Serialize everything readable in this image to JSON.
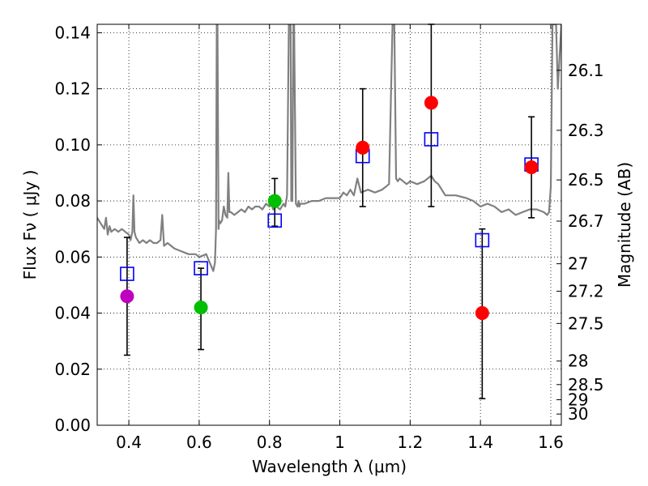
{
  "chart_data": {
    "type": "scatter",
    "xlabel": "Wavelength  λ (μm)",
    "ylabel_left": "Flux  Fν  ( μJy )",
    "ylabel_right": "Magnitude (AB)",
    "xlim": [
      0.31,
      1.63
    ],
    "ylim": [
      0.0,
      0.143
    ],
    "grid": true,
    "x_ticks": [
      {
        "value": 0.4,
        "label": "0.4"
      },
      {
        "value": 0.6,
        "label": "0.6"
      },
      {
        "value": 0.8,
        "label": "0.8"
      },
      {
        "value": 1.0,
        "label": "1"
      },
      {
        "value": 1.2,
        "label": "1.2"
      },
      {
        "value": 1.4,
        "label": "1.4"
      },
      {
        "value": 1.6,
        "label": "1.6"
      }
    ],
    "y_ticks": [
      {
        "value": 0.0,
        "label": "0.00"
      },
      {
        "value": 0.02,
        "label": "0.02"
      },
      {
        "value": 0.04,
        "label": "0.04"
      },
      {
        "value": 0.06,
        "label": "0.06"
      },
      {
        "value": 0.08,
        "label": "0.08"
      },
      {
        "value": 0.1,
        "label": "0.10"
      },
      {
        "value": 0.12,
        "label": "0.12"
      },
      {
        "value": 0.14,
        "label": "0.14"
      }
    ],
    "right_ticks": [
      {
        "flux": 0.1266,
        "label": "26.1"
      },
      {
        "flux": 0.1052,
        "label": "26.3"
      },
      {
        "flux": 0.0875,
        "label": "26.5"
      },
      {
        "flux": 0.0728,
        "label": "26.7"
      },
      {
        "flux": 0.0576,
        "label": "27"
      },
      {
        "flux": 0.0478,
        "label": "27.2"
      },
      {
        "flux": 0.0363,
        "label": "27.5"
      },
      {
        "flux": 0.0229,
        "label": "28"
      },
      {
        "flux": 0.0145,
        "label": "28.5"
      },
      {
        "flux": 0.0091,
        "label": "29"
      },
      {
        "flux": 0.004,
        "label": "30"
      }
    ],
    "spectrum": {
      "color": "#808080",
      "x": [
        0.31,
        0.32,
        0.33,
        0.335,
        0.34,
        0.345,
        0.35,
        0.36,
        0.37,
        0.38,
        0.39,
        0.4,
        0.405,
        0.41,
        0.413,
        0.416,
        0.42,
        0.43,
        0.44,
        0.45,
        0.46,
        0.47,
        0.48,
        0.49,
        0.495,
        0.5,
        0.51,
        0.52,
        0.53,
        0.55,
        0.57,
        0.59,
        0.6,
        0.62,
        0.63,
        0.64,
        0.645,
        0.648,
        0.65,
        0.652,
        0.655,
        0.657,
        0.66,
        0.665,
        0.67,
        0.675,
        0.68,
        0.683,
        0.686,
        0.69,
        0.7,
        0.72,
        0.73,
        0.74,
        0.75,
        0.76,
        0.77,
        0.78,
        0.79,
        0.8,
        0.805,
        0.81,
        0.82,
        0.83,
        0.84,
        0.845,
        0.85,
        0.855,
        0.86,
        0.862,
        0.865,
        0.868,
        0.87,
        0.875,
        0.88,
        0.883,
        0.885,
        0.888,
        0.89,
        0.9,
        0.92,
        0.94,
        0.96,
        0.98,
        1.0,
        1.01,
        1.02,
        1.03,
        1.04,
        1.05,
        1.06,
        1.08,
        1.1,
        1.12,
        1.13,
        1.14,
        1.15,
        1.155,
        1.16,
        1.165,
        1.17,
        1.18,
        1.19,
        1.2,
        1.22,
        1.24,
        1.26,
        1.27,
        1.28,
        1.3,
        1.33,
        1.36,
        1.38,
        1.4,
        1.42,
        1.44,
        1.46,
        1.48,
        1.5,
        1.52,
        1.54,
        1.56,
        1.58,
        1.59,
        1.595,
        1.6,
        1.605,
        1.61,
        1.615,
        1.62,
        1.63
      ],
      "y": [
        0.074,
        0.072,
        0.07,
        0.074,
        0.068,
        0.071,
        0.069,
        0.07,
        0.069,
        0.07,
        0.069,
        0.068,
        0.066,
        0.069,
        0.082,
        0.069,
        0.067,
        0.065,
        0.066,
        0.065,
        0.066,
        0.065,
        0.065,
        0.066,
        0.075,
        0.064,
        0.065,
        0.064,
        0.063,
        0.062,
        0.061,
        0.061,
        0.06,
        0.061,
        0.058,
        0.055,
        0.058,
        0.07,
        0.143,
        0.143,
        0.07,
        0.073,
        0.072,
        0.073,
        0.078,
        0.075,
        0.074,
        0.09,
        0.076,
        0.076,
        0.075,
        0.077,
        0.076,
        0.078,
        0.077,
        0.078,
        0.078,
        0.077,
        0.079,
        0.078,
        0.08,
        0.077,
        0.078,
        0.077,
        0.079,
        0.078,
        0.082,
        0.143,
        0.143,
        0.08,
        0.08,
        0.143,
        0.143,
        0.079,
        0.078,
        0.08,
        0.078,
        0.079,
        0.079,
        0.079,
        0.08,
        0.08,
        0.081,
        0.081,
        0.081,
        0.083,
        0.082,
        0.084,
        0.082,
        0.088,
        0.083,
        0.084,
        0.083,
        0.084,
        0.085,
        0.086,
        0.143,
        0.143,
        0.088,
        0.087,
        0.088,
        0.087,
        0.086,
        0.087,
        0.086,
        0.087,
        0.089,
        0.087,
        0.086,
        0.082,
        0.082,
        0.081,
        0.08,
        0.078,
        0.079,
        0.078,
        0.076,
        0.077,
        0.075,
        0.076,
        0.077,
        0.077,
        0.076,
        0.075,
        0.076,
        0.085,
        0.143,
        0.143,
        0.143,
        0.12,
        0.143
      ]
    },
    "model_points": {
      "marker": "open-square",
      "color": "#0000ff",
      "points": [
        {
          "x": 0.395,
          "y": 0.054
        },
        {
          "x": 0.605,
          "y": 0.056
        },
        {
          "x": 0.815,
          "y": 0.073
        },
        {
          "x": 1.065,
          "y": 0.096
        },
        {
          "x": 1.26,
          "y": 0.102
        },
        {
          "x": 1.405,
          "y": 0.066
        },
        {
          "x": 1.545,
          "y": 0.093
        }
      ]
    },
    "observed_points": [
      {
        "x": 0.395,
        "y": 0.046,
        "yerr_low": 0.025,
        "yerr_high": 0.067,
        "color": "#bf00bf"
      },
      {
        "x": 0.605,
        "y": 0.042,
        "yerr_low": 0.027,
        "yerr_high": 0.056,
        "color": "#00bf00"
      },
      {
        "x": 0.815,
        "y": 0.08,
        "yerr_low": 0.071,
        "yerr_high": 0.088,
        "color": "#00bf00"
      },
      {
        "x": 1.065,
        "y": 0.099,
        "yerr_low": 0.078,
        "yerr_high": 0.12,
        "color": "#ff0000"
      },
      {
        "x": 1.26,
        "y": 0.115,
        "yerr_low": 0.078,
        "yerr_high": 0.143,
        "color": "#ff0000"
      },
      {
        "x": 1.405,
        "y": 0.04,
        "yerr_low": 0.0095,
        "yerr_high": 0.07,
        "color": "#ff0000"
      },
      {
        "x": 1.545,
        "y": 0.092,
        "yerr_low": 0.074,
        "yerr_high": 0.11,
        "color": "#ff0000"
      }
    ]
  }
}
